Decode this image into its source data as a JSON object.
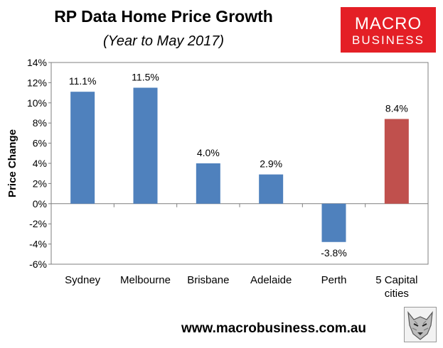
{
  "title": "RP Data Home Price Growth",
  "subtitle": "(Year to May 2017)",
  "logo": {
    "line1": "MACRO",
    "line2": "BUSINESS"
  },
  "website": "www.macrobusiness.com.au",
  "colors": {
    "bar": "#4f81bd",
    "highlight": "#c0504d",
    "grid": "#bfbfbf",
    "axis": "#7f7f7f"
  },
  "chart_data": {
    "type": "bar",
    "categories": [
      [
        "Sydney"
      ],
      [
        "Melbourne"
      ],
      [
        "Brisbane"
      ],
      [
        "Adelaide"
      ],
      [
        "Perth"
      ],
      [
        "5 Capital",
        "cities"
      ]
    ],
    "values": [
      11.1,
      11.5,
      4.0,
      2.9,
      -3.8,
      8.4
    ],
    "data_labels": [
      "11.1%",
      "11.5%",
      "4.0%",
      "2.9%",
      "-3.8%",
      "8.4%"
    ],
    "highlight_index": 5,
    "ylabel": "Price Change",
    "ylim": [
      -6,
      14
    ],
    "yticks": [
      -6,
      -4,
      -2,
      0,
      2,
      4,
      6,
      8,
      10,
      12,
      14
    ],
    "ytick_labels": [
      "-6%",
      "-4%",
      "-2%",
      "0%",
      "2%",
      "4%",
      "6%",
      "8%",
      "10%",
      "12%",
      "14%"
    ],
    "grid": false,
    "legend": "none"
  }
}
